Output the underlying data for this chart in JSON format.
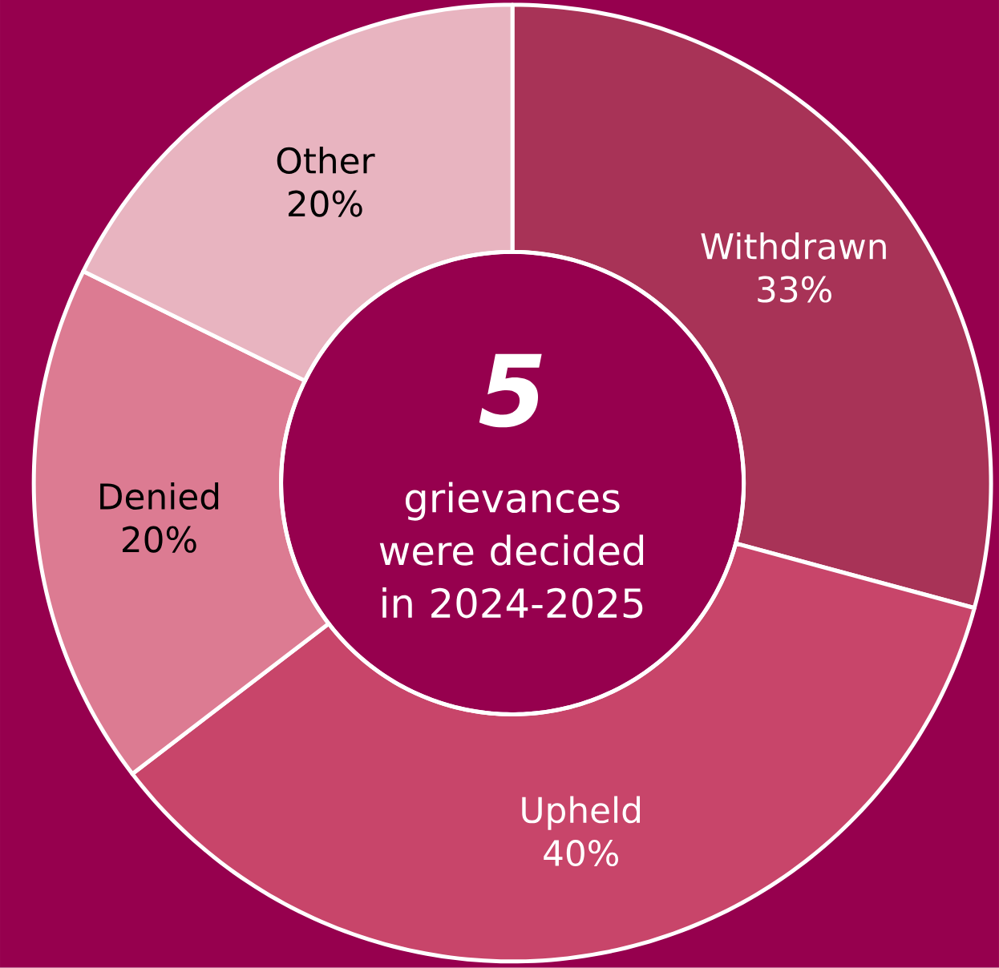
{
  "chart_data": {
    "type": "donut",
    "title": "5",
    "subtitle": "grievances were decided in 2024-2025",
    "categories": [
      "Withdrawn",
      "Upheld",
      "Denied",
      "Other"
    ],
    "values": [
      33,
      40,
      20,
      20
    ],
    "value_labels": [
      "33%",
      "40%",
      "20%",
      "20%"
    ],
    "colors": [
      "#a83357",
      "#c8456a",
      "#dc7b92",
      "#e8b4c0"
    ]
  }
}
